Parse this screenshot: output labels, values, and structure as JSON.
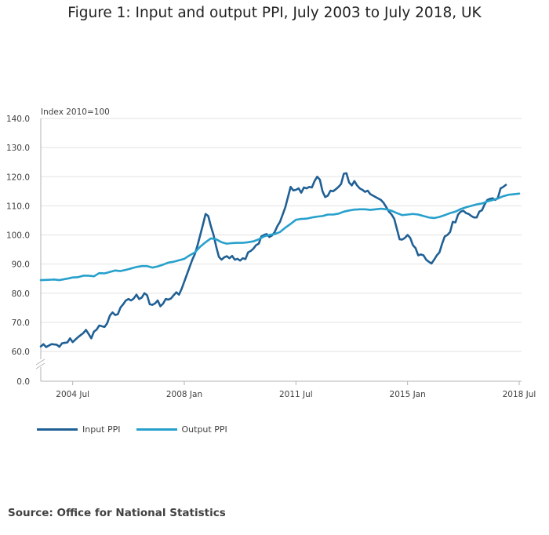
{
  "title": "Figure 1: Input and output PPI, July 2003 to July 2018, UK",
  "source": "Source: Office for National Statistics",
  "colors": {
    "input": "#206095",
    "output": "#27a0cc",
    "grid": "#e2e2e3",
    "axis": "#b3b3b3"
  },
  "chart_data": {
    "type": "line",
    "title": "Figure 1: Input and output PPI, July 2003 to July 2018, UK",
    "ylabel": "Index 2010=100",
    "xlabel": "",
    "x_start": "2003 Jul",
    "x_end": "2018 Jul",
    "months": 181,
    "ylim": [
      0,
      140
    ],
    "axis_break": [
      0,
      57
    ],
    "y_ticks": [
      "0.0",
      "60.0",
      "70.0",
      "80.0",
      "90.0",
      "100.0",
      "110.0",
      "120.0",
      "130.0",
      "140.0"
    ],
    "y_tick_values": [
      0,
      60,
      70,
      80,
      90,
      100,
      110,
      120,
      130,
      140
    ],
    "x_ticks": [
      {
        "label": "2004 Jul",
        "index": 12
      },
      {
        "label": "2008 Jan",
        "index": 54
      },
      {
        "label": "2011 Jul",
        "index": 96
      },
      {
        "label": "2015 Jan",
        "index": 138
      },
      {
        "label": "2018 Jul",
        "index": 180
      }
    ],
    "legend_position": "bottom-left",
    "grid": true,
    "series": [
      {
        "name": "Input PPI",
        "color": "#206095",
        "keypoints": [
          [
            0,
            61.7
          ],
          [
            1,
            62.5
          ],
          [
            2,
            61.5
          ],
          [
            4,
            62.5
          ],
          [
            6,
            62.3
          ],
          [
            7,
            61.6
          ],
          [
            8,
            62.8
          ],
          [
            10,
            63.1
          ],
          [
            11,
            64.5
          ],
          [
            12,
            63.2
          ],
          [
            14,
            64.9
          ],
          [
            16,
            66.3
          ],
          [
            17,
            67.4
          ],
          [
            18,
            66.0
          ],
          [
            19,
            64.5
          ],
          [
            20,
            66.8
          ],
          [
            21,
            67.5
          ],
          [
            22,
            68.9
          ],
          [
            24,
            68.4
          ],
          [
            25,
            69.7
          ],
          [
            26,
            72.3
          ],
          [
            27,
            73.4
          ],
          [
            28,
            72.5
          ],
          [
            29,
            72.8
          ],
          [
            30,
            75.1
          ],
          [
            31,
            76.2
          ],
          [
            32,
            77.5
          ],
          [
            33,
            78.0
          ],
          [
            34,
            77.5
          ],
          [
            35,
            78.2
          ],
          [
            36,
            79.5
          ],
          [
            37,
            78.0
          ],
          [
            38,
            78.5
          ],
          [
            39,
            80.0
          ],
          [
            40,
            79.3
          ],
          [
            41,
            76.2
          ],
          [
            42,
            76.0
          ],
          [
            43,
            76.5
          ],
          [
            44,
            77.5
          ],
          [
            45,
            75.5
          ],
          [
            46,
            76.4
          ],
          [
            47,
            78.0
          ],
          [
            48,
            77.8
          ],
          [
            49,
            78.2
          ],
          [
            50,
            79.3
          ],
          [
            51,
            80.3
          ],
          [
            52,
            79.5
          ],
          [
            53,
            81.5
          ],
          [
            54,
            84.0
          ],
          [
            55,
            86.5
          ],
          [
            56,
            89.0
          ],
          [
            57,
            91.5
          ],
          [
            58,
            93.5
          ],
          [
            59,
            96.5
          ],
          [
            60,
            100.0
          ],
          [
            61,
            103.5
          ],
          [
            62,
            107.2
          ],
          [
            63,
            106.5
          ],
          [
            64,
            103.0
          ],
          [
            65,
            100.0
          ],
          [
            66,
            96.0
          ],
          [
            67,
            92.5
          ],
          [
            68,
            91.5
          ],
          [
            69,
            92.3
          ],
          [
            70,
            92.7
          ],
          [
            71,
            92.0
          ],
          [
            72,
            92.8
          ],
          [
            73,
            91.5
          ],
          [
            74,
            91.8
          ],
          [
            75,
            91.2
          ],
          [
            76,
            92.0
          ],
          [
            77,
            91.7
          ],
          [
            78,
            94.0
          ],
          [
            79,
            94.5
          ],
          [
            80,
            95.3
          ],
          [
            81,
            96.5
          ],
          [
            82,
            97.0
          ],
          [
            83,
            99.5
          ],
          [
            84,
            100.0
          ],
          [
            85,
            100.3
          ],
          [
            86,
            99.3
          ],
          [
            87,
            99.8
          ],
          [
            88,
            101.0
          ],
          [
            89,
            103.0
          ],
          [
            90,
            104.5
          ],
          [
            91,
            107.0
          ],
          [
            92,
            109.5
          ],
          [
            93,
            113.0
          ],
          [
            94,
            116.5
          ],
          [
            95,
            115.3
          ],
          [
            96,
            115.5
          ],
          [
            97,
            116.0
          ],
          [
            98,
            114.5
          ],
          [
            99,
            116.3
          ],
          [
            100,
            116.0
          ],
          [
            101,
            116.5
          ],
          [
            102,
            116.3
          ],
          [
            103,
            118.5
          ],
          [
            104,
            120.0
          ],
          [
            105,
            119.0
          ],
          [
            106,
            115.0
          ],
          [
            107,
            113.0
          ],
          [
            108,
            113.5
          ],
          [
            109,
            115.2
          ],
          [
            110,
            115.0
          ],
          [
            111,
            115.7
          ],
          [
            112,
            116.5
          ],
          [
            113,
            117.5
          ],
          [
            114,
            121.0
          ],
          [
            115,
            121.2
          ],
          [
            116,
            118.0
          ],
          [
            117,
            117.0
          ],
          [
            118,
            118.5
          ],
          [
            119,
            117.0
          ],
          [
            120,
            116.0
          ],
          [
            121,
            115.5
          ],
          [
            122,
            114.8
          ],
          [
            123,
            115.2
          ],
          [
            124,
            114.0
          ],
          [
            125,
            113.5
          ],
          [
            126,
            113.0
          ],
          [
            127,
            112.5
          ],
          [
            128,
            112.0
          ],
          [
            129,
            111.0
          ],
          [
            130,
            109.5
          ],
          [
            131,
            108.0
          ],
          [
            132,
            107.0
          ],
          [
            133,
            105.5
          ],
          [
            134,
            102.0
          ],
          [
            135,
            98.5
          ],
          [
            136,
            98.4
          ],
          [
            137,
            99.0
          ],
          [
            138,
            100.0
          ],
          [
            139,
            99.0
          ],
          [
            140,
            96.5
          ],
          [
            141,
            95.5
          ],
          [
            142,
            93.0
          ],
          [
            143,
            93.3
          ],
          [
            144,
            93.0
          ],
          [
            145,
            91.5
          ],
          [
            146,
            90.8
          ],
          [
            147,
            90.2
          ],
          [
            148,
            91.5
          ],
          [
            149,
            93.0
          ],
          [
            150,
            94.0
          ],
          [
            151,
            97.0
          ],
          [
            152,
            99.5
          ],
          [
            153,
            100.0
          ],
          [
            154,
            101.0
          ],
          [
            155,
            104.5
          ],
          [
            156,
            104.3
          ],
          [
            157,
            107.0
          ],
          [
            158,
            108.0
          ],
          [
            159,
            108.3
          ],
          [
            160,
            107.5
          ],
          [
            161,
            107.2
          ],
          [
            162,
            106.5
          ],
          [
            163,
            106.0
          ],
          [
            164,
            106.0
          ],
          [
            165,
            108.0
          ],
          [
            166,
            108.5
          ],
          [
            167,
            110.5
          ],
          [
            168,
            112.0
          ],
          [
            169,
            112.4
          ],
          [
            170,
            112.6
          ],
          [
            171,
            112.0
          ],
          [
            172,
            112.8
          ],
          [
            173,
            116.0
          ],
          [
            174,
            116.5
          ],
          [
            175,
            117.2
          ]
        ]
      },
      {
        "name": "Output PPI",
        "color": "#27a0cc",
        "keypoints": [
          [
            0,
            84.5
          ],
          [
            3,
            84.6
          ],
          [
            5,
            84.7
          ],
          [
            7,
            84.5
          ],
          [
            10,
            85.0
          ],
          [
            12,
            85.4
          ],
          [
            14,
            85.5
          ],
          [
            16,
            86.0
          ],
          [
            18,
            86.0
          ],
          [
            20,
            85.8
          ],
          [
            22,
            86.9
          ],
          [
            24,
            86.8
          ],
          [
            26,
            87.3
          ],
          [
            28,
            87.8
          ],
          [
            30,
            87.6
          ],
          [
            32,
            88.0
          ],
          [
            34,
            88.5
          ],
          [
            36,
            89.0
          ],
          [
            38,
            89.3
          ],
          [
            40,
            89.3
          ],
          [
            42,
            88.8
          ],
          [
            44,
            89.2
          ],
          [
            46,
            89.8
          ],
          [
            48,
            90.5
          ],
          [
            50,
            90.8
          ],
          [
            52,
            91.3
          ],
          [
            54,
            91.8
          ],
          [
            56,
            93.0
          ],
          [
            58,
            94.0
          ],
          [
            60,
            96.0
          ],
          [
            62,
            97.5
          ],
          [
            64,
            98.8
          ],
          [
            66,
            98.5
          ],
          [
            68,
            97.5
          ],
          [
            70,
            97.0
          ],
          [
            72,
            97.2
          ],
          [
            74,
            97.3
          ],
          [
            76,
            97.3
          ],
          [
            78,
            97.5
          ],
          [
            80,
            97.8
          ],
          [
            82,
            98.5
          ],
          [
            84,
            99.5
          ],
          [
            86,
            100.0
          ],
          [
            88,
            100.3
          ],
          [
            90,
            101.0
          ],
          [
            92,
            102.5
          ],
          [
            94,
            103.8
          ],
          [
            96,
            105.2
          ],
          [
            98,
            105.5
          ],
          [
            100,
            105.6
          ],
          [
            102,
            106.0
          ],
          [
            104,
            106.3
          ],
          [
            106,
            106.5
          ],
          [
            108,
            107.0
          ],
          [
            110,
            107.0
          ],
          [
            112,
            107.3
          ],
          [
            114,
            108.0
          ],
          [
            116,
            108.4
          ],
          [
            118,
            108.7
          ],
          [
            120,
            108.8
          ],
          [
            122,
            108.8
          ],
          [
            124,
            108.6
          ],
          [
            126,
            108.8
          ],
          [
            128,
            109.0
          ],
          [
            130,
            108.8
          ],
          [
            132,
            108.3
          ],
          [
            134,
            107.5
          ],
          [
            136,
            106.8
          ],
          [
            138,
            107.0
          ],
          [
            140,
            107.2
          ],
          [
            142,
            107.0
          ],
          [
            144,
            106.5
          ],
          [
            146,
            106.0
          ],
          [
            148,
            105.8
          ],
          [
            150,
            106.2
          ],
          [
            152,
            106.8
          ],
          [
            154,
            107.5
          ],
          [
            156,
            108.0
          ],
          [
            158,
            108.9
          ],
          [
            160,
            109.5
          ],
          [
            162,
            110.0
          ],
          [
            164,
            110.5
          ],
          [
            166,
            110.8
          ],
          [
            168,
            111.5
          ],
          [
            170,
            112.0
          ],
          [
            172,
            112.5
          ],
          [
            174,
            113.3
          ],
          [
            176,
            113.8
          ],
          [
            178,
            114.0
          ],
          [
            180,
            114.2
          ]
        ]
      }
    ]
  }
}
